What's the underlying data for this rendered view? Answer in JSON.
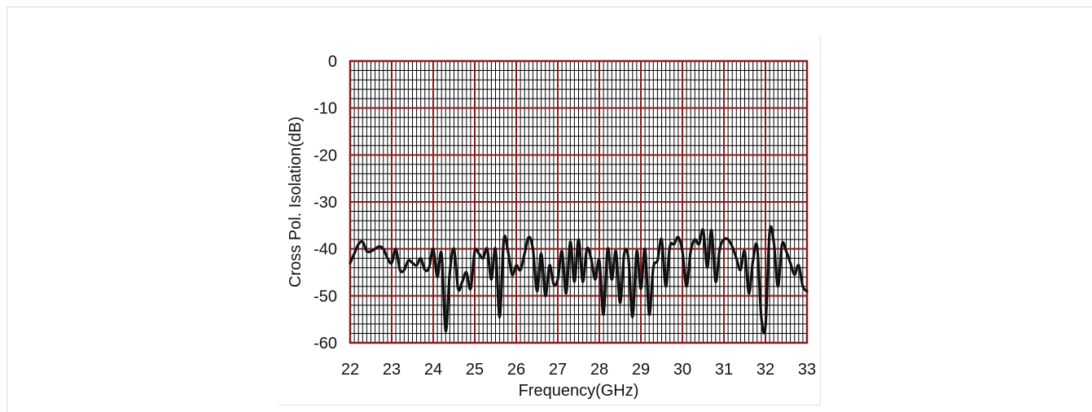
{
  "chart_data": {
    "type": "line",
    "title": "",
    "xlabel": "Frequency(GHz)",
    "ylabel": "Cross Pol. Isolation(dB)",
    "xlim": [
      22,
      33
    ],
    "ylim": [
      -60,
      0
    ],
    "xticks": [
      "22",
      "23",
      "24",
      "25",
      "26",
      "27",
      "28",
      "29",
      "30",
      "31",
      "32",
      "33"
    ],
    "yticks": [
      "0",
      "-10",
      "-20",
      "-30",
      "-40",
      "-50",
      "-60"
    ],
    "grid": true,
    "legend": "none",
    "colors": {
      "line": "#111111",
      "major_grid": "#8b1a1a",
      "minor_grid": "#000000",
      "frame": "#8b1a1a"
    },
    "series": [
      {
        "x": [
          22.0,
          22.1,
          22.2,
          22.3,
          22.4,
          22.5,
          22.6,
          22.7,
          22.8,
          22.9,
          23.0,
          23.1,
          23.2,
          23.3,
          23.4,
          23.5,
          23.6,
          23.7,
          23.8,
          23.9,
          24.0,
          24.1,
          24.2,
          24.3,
          24.4,
          24.5,
          24.6,
          24.7,
          24.8,
          24.9,
          25.0,
          25.1,
          25.2,
          25.3,
          25.4,
          25.5,
          25.6,
          25.7,
          25.8,
          25.9,
          26.0,
          26.1,
          26.2,
          26.3,
          26.4,
          26.5,
          26.6,
          26.7,
          26.8,
          26.9,
          27.0,
          27.1,
          27.2,
          27.3,
          27.4,
          27.5,
          27.6,
          27.7,
          27.8,
          27.9,
          28.0,
          28.1,
          28.2,
          28.3,
          28.4,
          28.5,
          28.6,
          28.7,
          28.8,
          28.9,
          29.0,
          29.1,
          29.2,
          29.3,
          29.4,
          29.5,
          29.6,
          29.7,
          29.8,
          29.9,
          30.0,
          30.1,
          30.2,
          30.3,
          30.4,
          30.5,
          30.6,
          30.7,
          30.8,
          30.9,
          31.0,
          31.1,
          31.2,
          31.3,
          31.4,
          31.5,
          31.6,
          31.7,
          31.8,
          31.9,
          32.0,
          32.1,
          32.2,
          32.3,
          32.4,
          32.5,
          32.6,
          32.7,
          32.8,
          32.9,
          33.0
        ],
        "y": [
          -43,
          -41,
          -39,
          -38.5,
          -40.5,
          -40.5,
          -40,
          -39.5,
          -40,
          -42,
          -43,
          -40,
          -44.5,
          -44.5,
          -42.5,
          -43,
          -43.5,
          -42,
          -44.5,
          -44,
          -40,
          -46,
          -41,
          -57.5,
          -45,
          -40,
          -48.5,
          -47,
          -45,
          -48.5,
          -40.5,
          -41,
          -42,
          -40,
          -46.5,
          -40,
          -54.5,
          -38,
          -40.5,
          -45.5,
          -43.5,
          -44.5,
          -41,
          -37.5,
          -40,
          -49,
          -41,
          -50,
          -43.5,
          -47.5,
          -46.5,
          -40.5,
          -49.5,
          -38.5,
          -47,
          -38,
          -47,
          -40,
          -42,
          -46.5,
          -42.5,
          -54,
          -40,
          -46.5,
          -40.5,
          -51.5,
          -41,
          -42,
          -54.5,
          -40.5,
          -48.5,
          -40,
          -54,
          -44,
          -42.5,
          -38,
          -48,
          -39.5,
          -39,
          -37.5,
          -40.5,
          -48,
          -40.5,
          -38,
          -39,
          -36,
          -44,
          -36,
          -47,
          -40,
          -38,
          -38,
          -39.5,
          -42,
          -44.5,
          -40.5,
          -49.5,
          -42.5,
          -39.5,
          -54.5,
          -56.5,
          -36.5,
          -38.5,
          -48,
          -39,
          -40.5,
          -43,
          -45.5,
          -43.5,
          -48,
          -49
        ]
      }
    ]
  }
}
